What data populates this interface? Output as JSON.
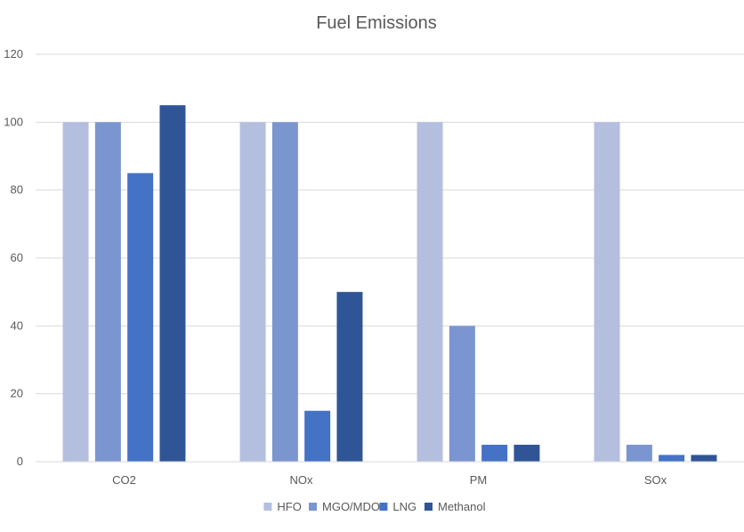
{
  "chart_data": {
    "type": "bar",
    "title": "Fuel Emissions",
    "xlabel": "",
    "ylabel": "",
    "categories": [
      "CO2",
      "NOx",
      "PM",
      "SOx"
    ],
    "ylim": [
      0,
      120
    ],
    "yticks": [
      0,
      20,
      40,
      60,
      80,
      100,
      120
    ],
    "grid": true,
    "legend_position": "bottom",
    "series": [
      {
        "name": "HFO",
        "color": "#b4bfdf",
        "values": [
          100,
          100,
          100,
          100
        ]
      },
      {
        "name": "MGO/MDO",
        "color": "#7b95d0",
        "values": [
          100,
          100,
          40,
          5
        ]
      },
      {
        "name": "LNG",
        "color": "#4472c4",
        "values": [
          85,
          15,
          5,
          2
        ]
      },
      {
        "name": "Methanol",
        "color": "#2f5597",
        "values": [
          105,
          50,
          5,
          2
        ]
      }
    ]
  }
}
